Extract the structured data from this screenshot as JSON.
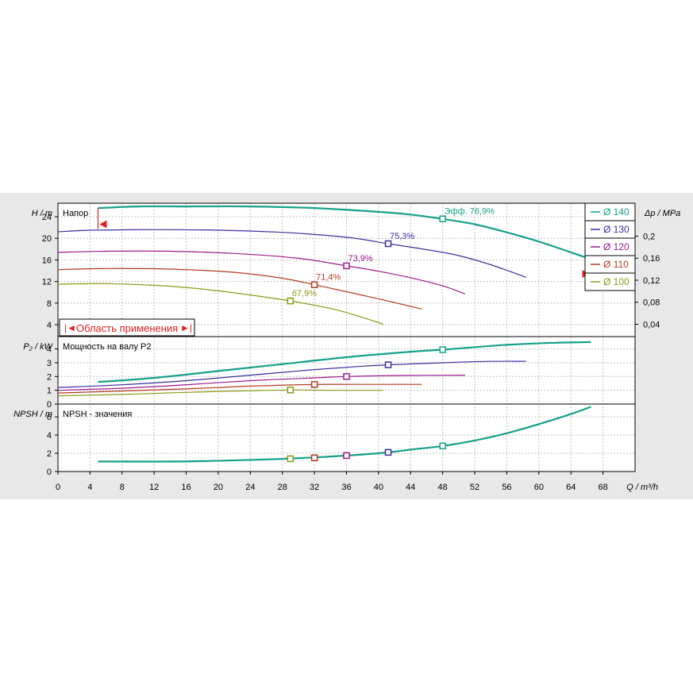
{
  "chart_data": {
    "type": "line",
    "x_label": "Q / m³/h",
    "x_range": [
      0,
      72
    ],
    "x_ticks": [
      "0",
      "4",
      "8",
      "12",
      "16",
      "20",
      "24",
      "28",
      "32",
      "36",
      "40",
      "44",
      "48",
      "52",
      "56",
      "60",
      "64",
      "68"
    ],
    "panels": {
      "head": {
        "title": "Напор",
        "ylabel": "H / m",
        "ylim": [
          1.8,
          26.5
        ],
        "yticks": [
          "4",
          "8",
          "12",
          "16",
          "20",
          "24"
        ],
        "right_label": "Δp / MPa",
        "right_ticks": [
          "0,04",
          "0,08",
          "0,12",
          "0,16",
          "0,2"
        ],
        "right_tick_values": [
          4.08,
          8.16,
          12.24,
          16.32,
          20.4
        ],
        "range_label": "Область применения",
        "range_arrows": [
          "|◄",
          "►|"
        ],
        "range_markers": [
          {
            "q": 5,
            "h": 22.6
          },
          {
            "q": 66.5,
            "h": 13.4
          }
        ]
      },
      "power": {
        "title": "Мощность на валу P2",
        "ylabel": "P₂ / kW",
        "ylim": [
          0,
          4.9
        ],
        "yticks": [
          "0",
          "1",
          "2",
          "3",
          "4"
        ]
      },
      "npsh": {
        "title": "NPSH - значения",
        "ylabel": "NPSH / m",
        "ylim": [
          0,
          7.4
        ],
        "yticks": [
          "0",
          "2",
          "4",
          "6"
        ]
      }
    },
    "series": [
      {
        "name": "Ø 140",
        "color": "#16a08a",
        "bold": true,
        "head": [
          [
            5,
            25.6
          ],
          [
            10,
            25.9
          ],
          [
            16,
            25.9
          ],
          [
            24,
            25.9
          ],
          [
            32,
            25.6
          ],
          [
            40,
            24.9
          ],
          [
            44,
            24.4
          ],
          [
            48,
            23.6
          ],
          [
            52,
            22.6
          ],
          [
            56,
            21.1
          ],
          [
            60,
            19.4
          ],
          [
            64,
            17.4
          ],
          [
            66.5,
            16.1
          ]
        ],
        "power": [
          [
            5,
            1.6
          ],
          [
            12,
            1.9
          ],
          [
            20,
            2.4
          ],
          [
            28,
            2.9
          ],
          [
            36,
            3.4
          ],
          [
            44,
            3.8
          ],
          [
            48,
            3.95
          ],
          [
            56,
            4.3
          ],
          [
            62,
            4.45
          ],
          [
            66.5,
            4.5
          ]
        ],
        "npsh": [
          [
            5,
            1.1
          ],
          [
            15,
            1.1
          ],
          [
            25,
            1.3
          ],
          [
            32,
            1.55
          ],
          [
            40,
            2.0
          ],
          [
            44,
            2.4
          ],
          [
            48,
            2.8
          ],
          [
            52,
            3.4
          ],
          [
            56,
            4.2
          ],
          [
            60,
            5.2
          ],
          [
            64,
            6.3
          ],
          [
            66.5,
            7.1
          ]
        ],
        "marker": {
          "q": 48,
          "h": 23.6,
          "p": 3.95,
          "npsh": 2.8,
          "label": "Эфф.  76,9%"
        }
      },
      {
        "name": "Ø 130",
        "color": "#3a2fa0",
        "head": [
          [
            0,
            21.2
          ],
          [
            4,
            21.5
          ],
          [
            12,
            21.6
          ],
          [
            20,
            21.5
          ],
          [
            28,
            21.1
          ],
          [
            36,
            20.2
          ],
          [
            41.2,
            19.0
          ],
          [
            46,
            17.9
          ],
          [
            50,
            16.8
          ],
          [
            54,
            15.1
          ],
          [
            58.4,
            12.8
          ]
        ],
        "power": [
          [
            0,
            1.2
          ],
          [
            8,
            1.4
          ],
          [
            16,
            1.7
          ],
          [
            24,
            2.1
          ],
          [
            32,
            2.5
          ],
          [
            38,
            2.75
          ],
          [
            41.2,
            2.85
          ],
          [
            48,
            3.0
          ],
          [
            54,
            3.1
          ],
          [
            58.4,
            3.1
          ]
        ],
        "npsh": [
          [
            41.2,
            2.1
          ]
        ],
        "marker": {
          "q": 41.2,
          "h": 19.0,
          "p": 2.85,
          "npsh": 2.1,
          "label": "75,3%"
        }
      },
      {
        "name": "Ø 120",
        "color": "#9e1a8e",
        "head": [
          [
            0,
            17.4
          ],
          [
            6,
            17.6
          ],
          [
            14,
            17.6
          ],
          [
            22,
            17.2
          ],
          [
            30,
            16.3
          ],
          [
            36,
            14.9
          ],
          [
            40,
            13.9
          ],
          [
            44,
            12.7
          ],
          [
            48,
            11.2
          ],
          [
            50.8,
            9.7
          ]
        ],
        "power": [
          [
            0,
            1.0
          ],
          [
            8,
            1.15
          ],
          [
            16,
            1.4
          ],
          [
            24,
            1.7
          ],
          [
            32,
            1.9
          ],
          [
            36,
            2.0
          ],
          [
            42,
            2.07
          ],
          [
            50.8,
            2.1
          ]
        ],
        "npsh": [
          [
            36,
            1.75
          ]
        ],
        "marker": {
          "q": 36,
          "h": 14.9,
          "p": 2.0,
          "npsh": 1.75,
          "label": "73,9%"
        }
      },
      {
        "name": "Ø 110",
        "color": "#b63a22",
        "head": [
          [
            0,
            14.2
          ],
          [
            6,
            14.4
          ],
          [
            14,
            14.3
          ],
          [
            22,
            13.7
          ],
          [
            28,
            12.6
          ],
          [
            32,
            11.4
          ],
          [
            36,
            10.1
          ],
          [
            40,
            8.8
          ],
          [
            45.4,
            6.9
          ]
        ],
        "power": [
          [
            0,
            0.8
          ],
          [
            8,
            0.95
          ],
          [
            16,
            1.1
          ],
          [
            24,
            1.3
          ],
          [
            32,
            1.42
          ],
          [
            38,
            1.43
          ],
          [
            45.4,
            1.43
          ]
        ],
        "npsh": [
          [
            32,
            1.5
          ]
        ],
        "marker": {
          "q": 32,
          "h": 11.4,
          "p": 1.42,
          "npsh": 1.5,
          "label": "71,4%"
        }
      },
      {
        "name": "Ø 100",
        "color": "#8a9a18",
        "head": [
          [
            0,
            11.5
          ],
          [
            6,
            11.6
          ],
          [
            12,
            11.3
          ],
          [
            18,
            10.6
          ],
          [
            24,
            9.5
          ],
          [
            29,
            8.4
          ],
          [
            34,
            7.0
          ],
          [
            37,
            5.8
          ],
          [
            40.6,
            4.1
          ]
        ],
        "power": [
          [
            0,
            0.6
          ],
          [
            8,
            0.7
          ],
          [
            16,
            0.85
          ],
          [
            24,
            0.97
          ],
          [
            29,
            1.02
          ],
          [
            35,
            1.0
          ],
          [
            40.6,
            1.0
          ]
        ],
        "npsh": [
          [
            29,
            1.4
          ]
        ],
        "marker": {
          "q": 29,
          "h": 8.4,
          "p": 1.02,
          "npsh": 1.4,
          "label": "67,9%"
        }
      }
    ]
  }
}
